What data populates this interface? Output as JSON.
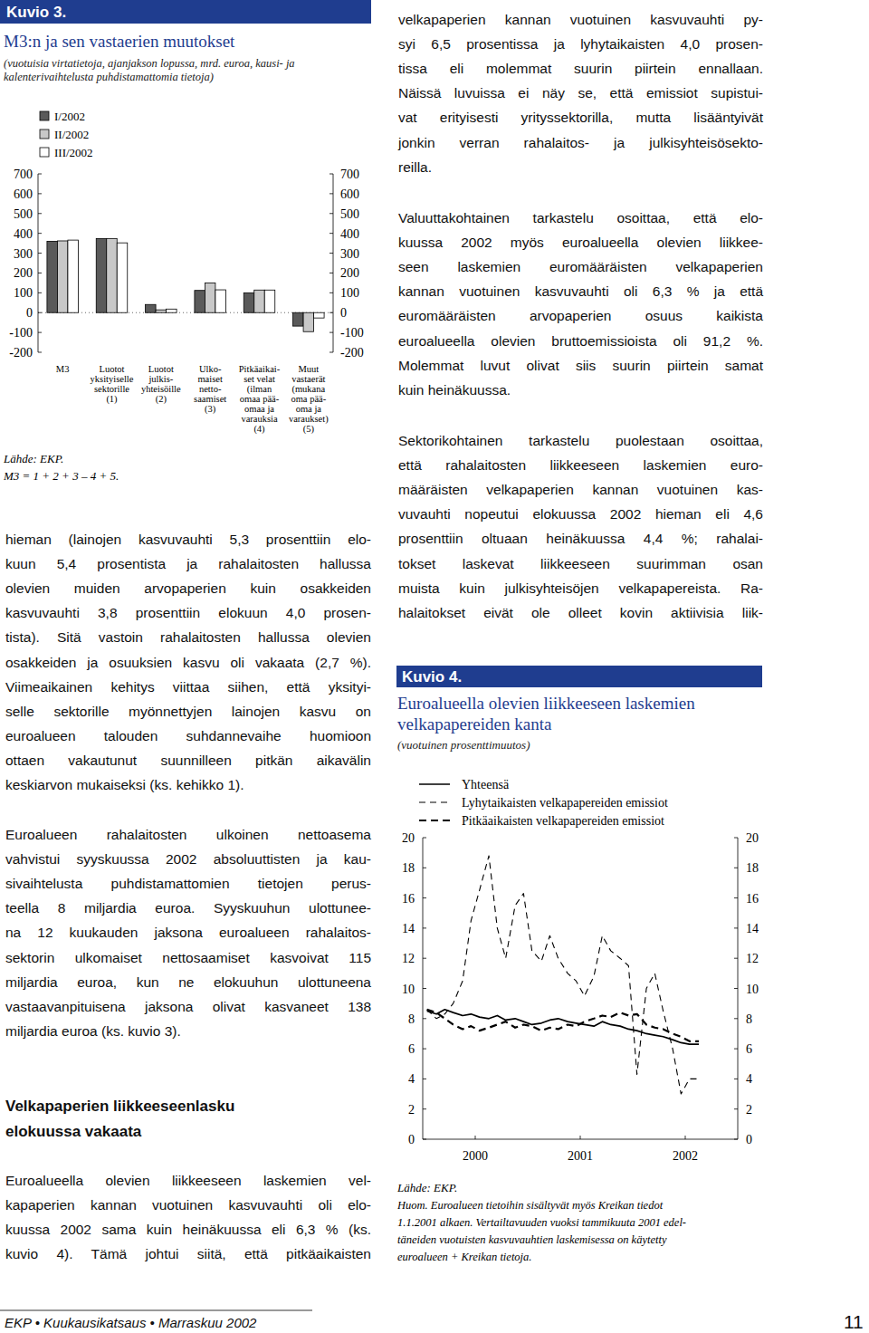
{
  "page": {
    "left_column": {
      "paragraphs": [
        [
          "hieman (lainojen kasvuvauhti 5,3 prosenttiin elo-",
          "kuun 5,4 prosentista ja rahalaitosten hallussa",
          "olevien muiden arvopaperien kuin osakkeiden",
          "kasvuvauhti 3,8 prosenttiin elokuun 4,0 prosen-",
          "tista). Sitä vastoin rahalaitosten hallussa olevien",
          "osakkeiden ja osuuksien kasvu oli vakaata (2,7 %).",
          "Viimeaikainen kehitys viittaa siihen, että yksityi-",
          "selle sektorille myönnettyjen lainojen kasvu on",
          "euroalueen talouden suhdannevaihe huomioon",
          "ottaen vakautunut suunnilleen pitkän aikavälin",
          "keskiarvon mukaiseksi (ks. kehikko 1)."
        ],
        [
          "Euroalueen rahalaitosten ulkoinen nettoasema",
          "vahvistui syyskuussa 2002 absoluuttisten ja kau-",
          "sivaihtelusta puhdistamattomien tietojen perus-",
          "teella 8 miljardia euroa. Syyskuuhun ulottunee-",
          "na 12 kuukauden jaksona euroalueen rahalaitos-",
          "sektorin ulkomaiset nettosaamiset kasvoivat 115",
          "miljardia euroa, kun ne elokuuhun ulottuneena",
          "vastaavanpituisena jaksona olivat kasvaneet 138",
          "miljardia euroa (ks. kuvio 3)."
        ]
      ],
      "heading": [
        "Velkapaperien liikkeeseenlasku",
        "elokuussa vakaata"
      ],
      "paragraph_after_heading": [
        "Euroalueella olevien liikkeeseen laskemien vel-",
        "kapaperien kannan vuotuinen kasvuvauhti oli elo-",
        "kuussa 2002 sama kuin heinäkuussa eli 6,3 % (ks.",
        "kuvio 4). Tämä johtui siitä, että pitkäaikaisten"
      ]
    },
    "right_column": {
      "paragraphs": [
        [
          "velkapaperien kannan vuotuinen kasvuvauhti py-",
          "syi 6,5 prosentissa ja lyhytaikaisten 4,0 prosen-",
          "tissa eli molemmat suurin piirtein ennallaan.",
          "Näissä luvuissa ei näy se, että emissiot supistui-",
          "vat erityisesti yrityssektorilla, mutta lisääntyivät",
          "jonkin verran rahalaitos- ja julkisyhteisösekto-",
          "reilla."
        ],
        [
          "Valuuttakohtainen tarkastelu osoittaa, että elo-",
          "kuussa 2002 myös euroalueella olevien liikkee-",
          "seen laskemien euromääräisten velkapaperien",
          "kannan vuotuinen kasvuvauhti oli 6,3 % ja että",
          "euromääräisten arvopaperien osuus kaikista",
          "euroalueella olevien bruttoemissioista oli 91,2 %.",
          "Molemmat luvut olivat siis suurin piirtein samat",
          "kuin heinäkuussa."
        ],
        [
          "Sektorikohtainen tarkastelu puolestaan osoittaa,",
          "että rahalaitosten liikkeeseen laskemien euro-",
          "määräisten velkapaperien kannan vuotuinen kas-",
          "vuvauhti nopeutui elokuussa 2002 hieman eli 4,6",
          "prosenttiin oltuaan heinäkuussa 4,4 %; rahalai-",
          "tokset laskevat liikkeeseen suurimman osan",
          "muista kuin julkisyhteisöjen velkapapereista. Ra-",
          "halaitokset eivät ole olleet kovin aktiivisia liik-"
        ]
      ]
    },
    "footer": {
      "publication": "EKP • Kuukausikatsaus • Marraskuu 2002",
      "page_number": "11"
    }
  },
  "chart_data": [
    {
      "type": "bar",
      "label": "Kuvio 3.",
      "title": "M3:n ja sen vastaerien muutokset",
      "subtitle": "(vuotuisia virtatietoja, ajanjakson lopussa, mrd. euroa, kausi- ja\nkalenterivaihtelusta puhdistamattomia tietoja)",
      "categories": [
        "M3",
        "Luotot\nyksityiselle\nsektorille\n(1)",
        "Luotot\njulkis-\nyhteisöille\n(2)",
        "Ulko-\nmaiset\nnetto-\nsaamiset\n(3)",
        "Pitkäaikai-\nset velat\n(ilman\nomaa pää-\nomaa ja\nvarauksia\n(4)",
        "Muut\nvastaerät\n(mukana\noma pää-\noma ja\nvaraukset)\n(5)"
      ],
      "series": [
        {
          "name": "I/2002",
          "color": "#5a5a5a",
          "values": [
            360,
            374,
            41,
            112,
            100,
            -68
          ]
        },
        {
          "name": "II/2002",
          "color": "#c8c8c8",
          "values": [
            362,
            374,
            14,
            150,
            114,
            -96
          ]
        },
        {
          "name": "III/2002",
          "color": "#ffffff",
          "values": [
            366,
            352,
            18,
            115,
            114,
            -27
          ]
        }
      ],
      "ylim": [
        -200,
        700
      ],
      "yticks": [
        -200,
        -100,
        0,
        100,
        200,
        300,
        400,
        500,
        600,
        700
      ],
      "legend": "top-left",
      "source": "Lähde: EKP.",
      "note": "M3 = 1 + 2 + 3 – 4 + 5."
    },
    {
      "type": "line",
      "label": "Kuvio 4.",
      "title": "Euroalueella olevien liikkeeseen laskemien\nvelkapapereiden kanta",
      "subtitle": "(vuotuinen prosenttimuutos)",
      "x": [
        2000.04,
        2000.13,
        2000.21,
        2000.29,
        2000.38,
        2000.46,
        2000.54,
        2000.63,
        2000.71,
        2000.79,
        2000.88,
        2000.96,
        2001.04,
        2001.13,
        2001.21,
        2001.29,
        2001.38,
        2001.46,
        2001.54,
        2001.63,
        2001.71,
        2001.79,
        2001.88,
        2001.96,
        2002.04,
        2002.13,
        2002.21,
        2002.29,
        2002.38,
        2002.46,
        2002.54,
        2002.63
      ],
      "series": [
        {
          "name": "Yhteensä",
          "color": "#000000",
          "line_style": "solid",
          "values": [
            8.5,
            8.3,
            8.6,
            8.4,
            8.2,
            8.3,
            8.1,
            8.0,
            8.2,
            7.9,
            8.0,
            7.8,
            7.6,
            7.7,
            7.9,
            8.0,
            7.8,
            7.7,
            7.6,
            7.5,
            7.8,
            7.6,
            7.5,
            7.3,
            7.2,
            7.0,
            6.9,
            6.8,
            6.6,
            6.4,
            6.3,
            6.3
          ]
        },
        {
          "name": "Lyhytaikaisten velkapapereiden emissiot",
          "color": "#000000",
          "line_style": "dashed",
          "values": [
            8.6,
            8.0,
            8.3,
            9.0,
            10.5,
            14.5,
            16.5,
            18.8,
            14.0,
            12.0,
            15.5,
            16.3,
            12.5,
            11.8,
            13.5,
            12.0,
            11.0,
            10.5,
            9.5,
            10.8,
            13.5,
            12.5,
            12.0,
            11.5,
            4.3,
            10.0,
            11.0,
            8.5,
            6.0,
            3.0,
            4.0,
            4.0
          ]
        },
        {
          "name": "Pitkäaikaisten velkapapereiden emissiot",
          "color": "#000000",
          "line_style": "heavydash",
          "values": [
            8.6,
            8.4,
            8.0,
            7.6,
            7.3,
            7.5,
            7.2,
            7.4,
            7.6,
            7.8,
            7.4,
            7.6,
            7.5,
            7.2,
            7.4,
            7.3,
            7.6,
            7.5,
            7.8,
            8.0,
            8.2,
            8.1,
            8.4,
            8.2,
            8.3,
            7.6,
            7.4,
            7.3,
            7.0,
            6.8,
            6.5,
            6.5
          ]
        }
      ],
      "xlim": [
        2000,
        2003
      ],
      "xticks": [
        {
          "value": 2000.5,
          "label": "2000"
        },
        {
          "value": 2001.5,
          "label": "2001"
        },
        {
          "value": 2002.5,
          "label": "2002"
        }
      ],
      "ylim": [
        0,
        20
      ],
      "yticks": [
        0,
        2,
        4,
        6,
        8,
        10,
        12,
        14,
        16,
        18,
        20
      ],
      "legend": "top-left",
      "source": "Lähde: EKP.",
      "note": "Huom. Euroalueen tietoihin sisältyvät myös Kreikan tiedot\n1.1.2001 alkaen. Vertailtavuuden vuoksi tammikuuta 2001 edel-\ntäneiden vuotuisten kasvuvauhtien laskemisessa on käytetty\neuroalueen + Kreikan tietoja."
    }
  ]
}
